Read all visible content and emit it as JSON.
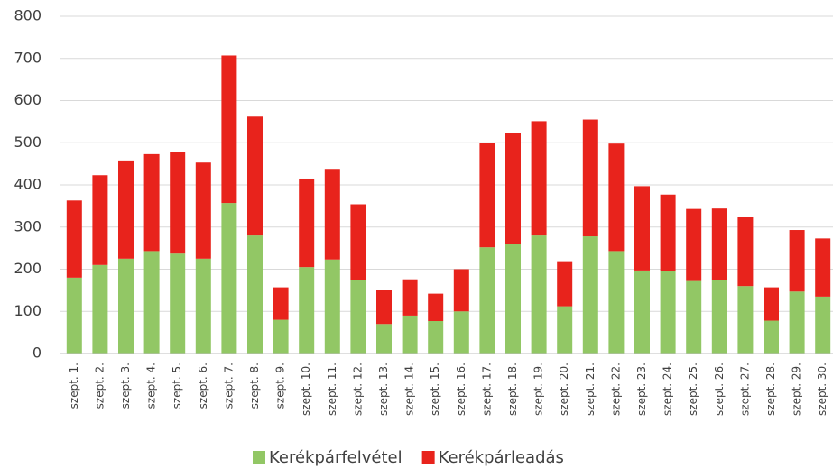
{
  "chart_data": {
    "type": "stacked-bar",
    "categories": [
      "szept. 1.",
      "szept. 2.",
      "szept. 3.",
      "szept. 4.",
      "szept. 5.",
      "szept. 6.",
      "szept. 7.",
      "szept. 8.",
      "szept. 9.",
      "szept. 10.",
      "szept. 11.",
      "szept. 12.",
      "szept. 13.",
      "szept. 14.",
      "szept. 15.",
      "szept. 16.",
      "szept. 17.",
      "szept. 18.",
      "szept. 19.",
      "szept. 20.",
      "szept. 21.",
      "szept. 22.",
      "szept. 23.",
      "szept. 24.",
      "szept. 25.",
      "szept. 26.",
      "szept. 27.",
      "szept. 28.",
      "szept. 29.",
      "szept. 30."
    ],
    "series": [
      {
        "name": "Kerékpárfelvétel",
        "color": "#92c765",
        "values": [
          180,
          210,
          225,
          243,
          237,
          225,
          357,
          280,
          80,
          205,
          223,
          175,
          70,
          90,
          77,
          100,
          252,
          260,
          280,
          112,
          278,
          243,
          197,
          195,
          172,
          175,
          160,
          78,
          147,
          135
        ]
      },
      {
        "name": "Kerékpárleadás",
        "color": "#e8231c",
        "values": [
          183,
          213,
          233,
          230,
          242,
          228,
          350,
          282,
          77,
          210,
          215,
          179,
          81,
          86,
          65,
          100,
          248,
          264,
          271,
          107,
          277,
          255,
          200,
          182,
          171,
          169,
          163,
          79,
          146,
          138
        ]
      }
    ],
    "ylim": [
      0,
      800
    ],
    "yticks": [
      0,
      100,
      200,
      300,
      400,
      500,
      600,
      700,
      800
    ],
    "grid": true,
    "legend": "bottom"
  }
}
